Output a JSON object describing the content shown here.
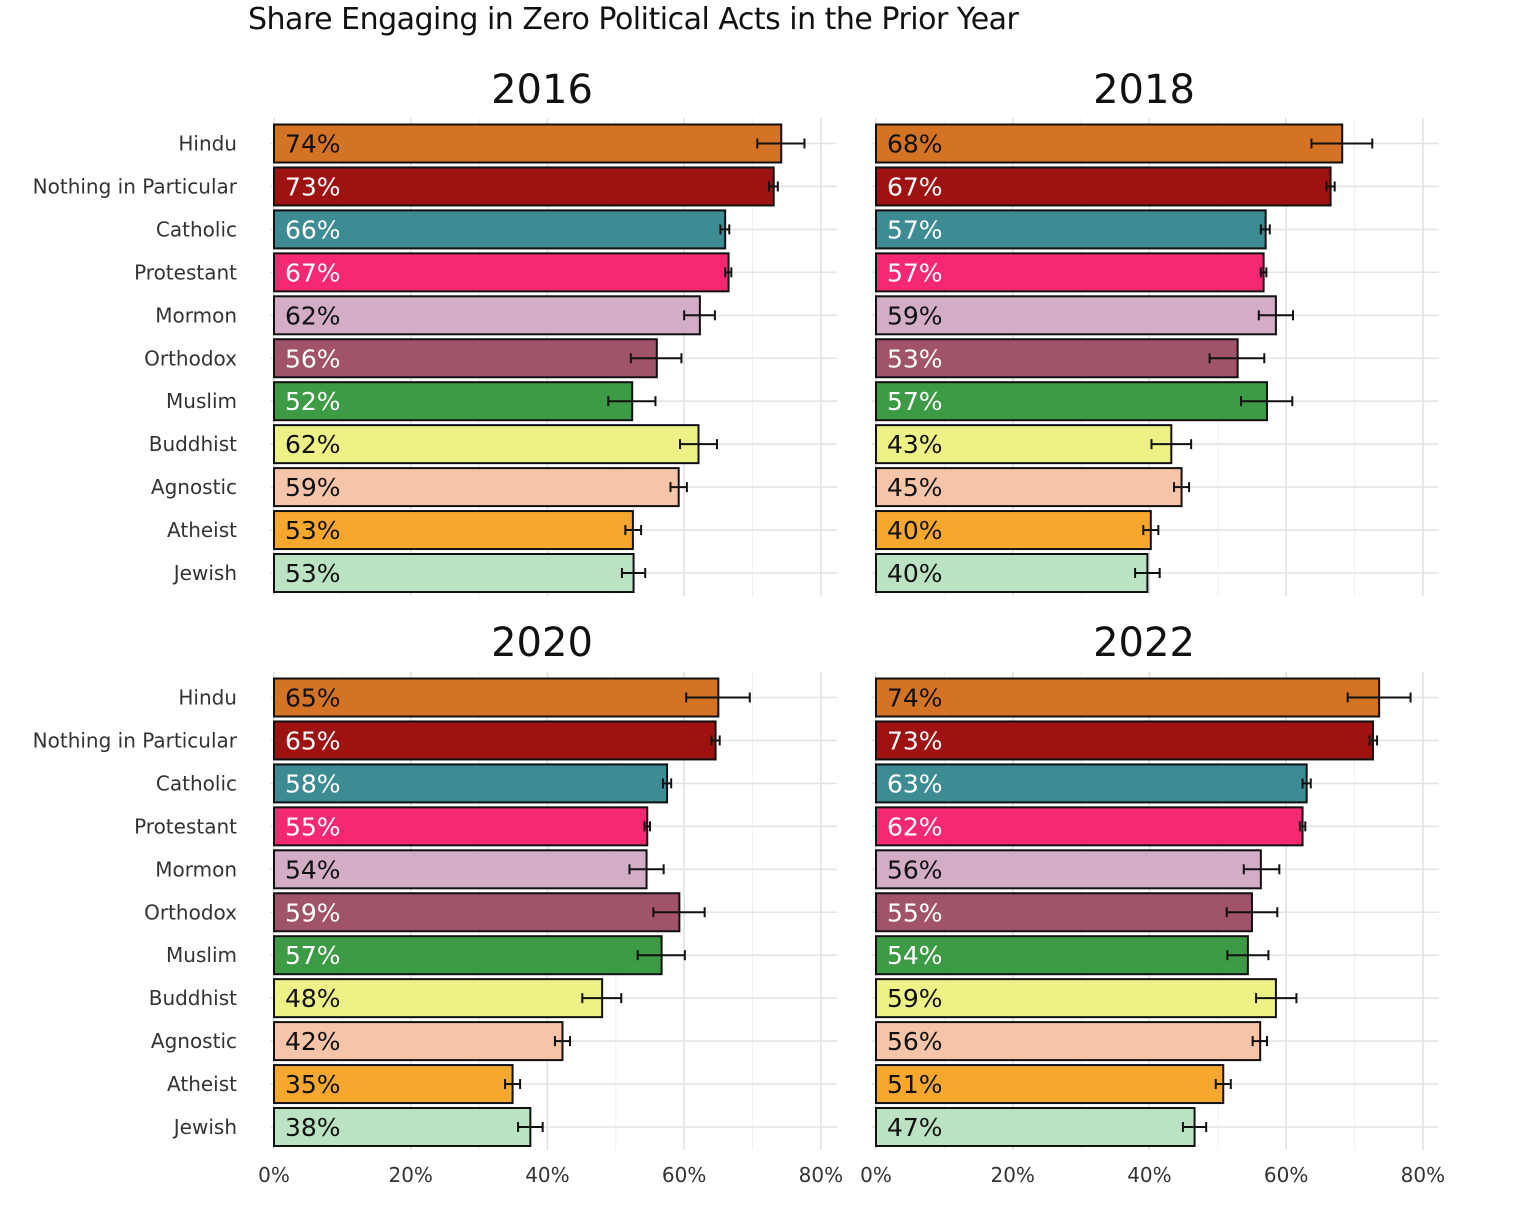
{
  "title": "Share Engaging in Zero Political Acts in the Prior Year",
  "chart_data": {
    "type": "bar",
    "orientation": "horizontal",
    "title": "Share Engaging in Zero Political Acts in the Prior Year",
    "xlim": [
      0,
      80
    ],
    "x_ticks": [
      "0%",
      "20%",
      "40%",
      "60%",
      "80%"
    ],
    "grid": true,
    "categories": [
      "Hindu",
      "Nothing in Particular",
      "Catholic",
      "Protestant",
      "Mormon",
      "Orthodox",
      "Muslim",
      "Buddhist",
      "Agnostic",
      "Atheist",
      "Jewish"
    ],
    "colors": [
      "#D57325",
      "#9E1212",
      "#3D8C94",
      "#F72872",
      "#D2ADC5",
      "#A1536A",
      "#3D9B45",
      "#EEF286",
      "#F6C5A9",
      "#F5A72E",
      "#BAE2C3"
    ],
    "label_colors": [
      "#111111",
      "#ffffff",
      "#ffffff",
      "#ffffff",
      "#111111",
      "#ffffff",
      "#ffffff",
      "#111111",
      "#111111",
      "#111111",
      "#111111"
    ],
    "panels": [
      {
        "year": "2016",
        "values": [
          74.2,
          73.1,
          66.0,
          66.5,
          62.3,
          56.0,
          52.4,
          62.1,
          59.2,
          52.5,
          52.6
        ],
        "labels": [
          "74%",
          "73%",
          "66%",
          "67%",
          "62%",
          "56%",
          "52%",
          "62%",
          "59%",
          "53%",
          "53%"
        ],
        "err_low": [
          70.7,
          72.4,
          65.3,
          66.0,
          60.0,
          52.2,
          48.9,
          59.4,
          58.0,
          51.4,
          50.9
        ],
        "err_high": [
          77.6,
          73.7,
          66.6,
          66.9,
          64.5,
          59.6,
          55.8,
          64.8,
          60.4,
          53.7,
          54.3
        ]
      },
      {
        "year": "2018",
        "values": [
          68.2,
          66.5,
          57.0,
          56.7,
          58.5,
          52.9,
          57.2,
          43.2,
          44.7,
          40.2,
          39.7
        ],
        "labels": [
          "68%",
          "67%",
          "57%",
          "57%",
          "59%",
          "53%",
          "57%",
          "43%",
          "45%",
          "40%",
          "40%"
        ],
        "err_low": [
          63.7,
          65.9,
          56.3,
          56.3,
          56.0,
          48.8,
          53.4,
          40.3,
          43.6,
          39.1,
          37.9
        ],
        "err_high": [
          72.6,
          67.1,
          57.6,
          57.1,
          61.0,
          56.8,
          60.9,
          46.1,
          45.8,
          41.3,
          41.5
        ]
      },
      {
        "year": "2020",
        "values": [
          65.0,
          64.6,
          57.5,
          54.6,
          54.5,
          59.3,
          56.7,
          48.0,
          42.2,
          34.9,
          37.5
        ],
        "labels": [
          "65%",
          "65%",
          "58%",
          "55%",
          "54%",
          "59%",
          "57%",
          "48%",
          "42%",
          "35%",
          "38%"
        ],
        "err_low": [
          60.3,
          64.0,
          56.9,
          54.2,
          52.0,
          55.5,
          53.2,
          45.1,
          41.1,
          33.8,
          35.7
        ],
        "err_high": [
          69.6,
          65.2,
          58.1,
          55.0,
          57.0,
          63.0,
          60.1,
          50.8,
          43.3,
          36.0,
          39.3
        ]
      },
      {
        "year": "2022",
        "values": [
          73.6,
          72.7,
          63.0,
          62.4,
          56.3,
          55.0,
          54.4,
          58.5,
          56.2,
          50.8,
          46.6
        ],
        "labels": [
          "74%",
          "73%",
          "63%",
          "62%",
          "56%",
          "55%",
          "54%",
          "59%",
          "56%",
          "51%",
          "47%"
        ],
        "err_low": [
          69.0,
          72.2,
          62.4,
          62.0,
          53.8,
          51.3,
          51.4,
          55.6,
          55.1,
          49.7,
          44.9
        ],
        "err_high": [
          78.2,
          73.3,
          63.6,
          62.8,
          59.0,
          58.7,
          57.4,
          61.5,
          57.2,
          51.9,
          48.3
        ]
      }
    ]
  }
}
